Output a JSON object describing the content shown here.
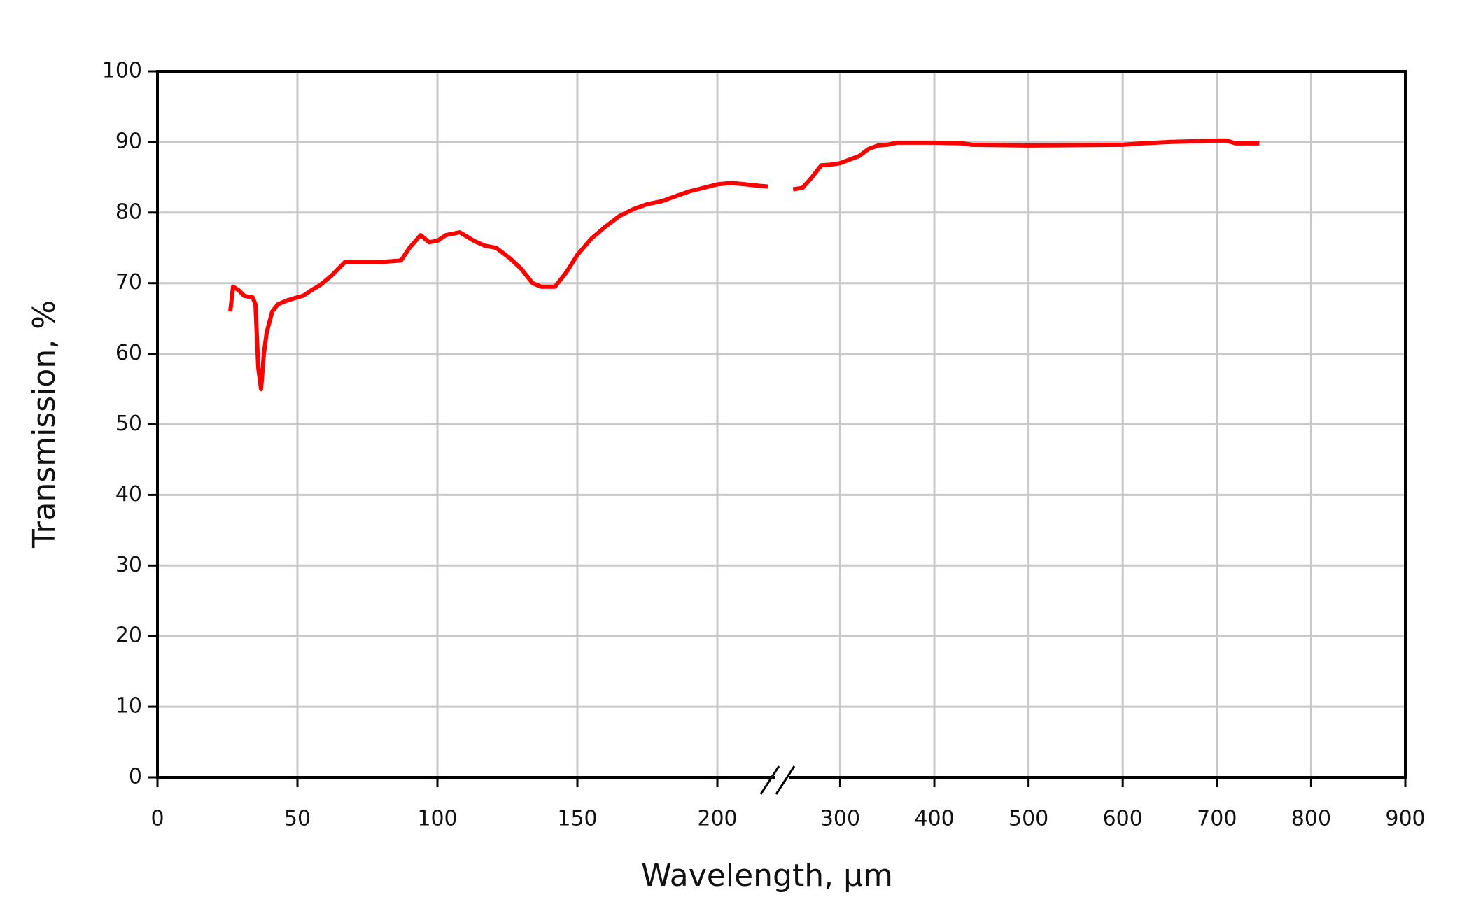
{
  "chart_data": {
    "type": "line",
    "x_label": "Wavelength, µm",
    "y_label": "Transmission, %",
    "color": "#ff0000",
    "grid": true,
    "ylim": [
      0,
      100
    ],
    "yticks": [
      0,
      10,
      20,
      30,
      40,
      50,
      60,
      70,
      80,
      90,
      100
    ],
    "segments": [
      {
        "xlim": [
          0,
          223
        ],
        "xticks": [
          0,
          50,
          100,
          150,
          200
        ],
        "x": [
          26,
          27,
          29,
          31,
          34,
          35,
          36,
          37,
          38,
          39,
          41,
          43,
          46,
          50,
          52,
          55,
          58,
          62,
          67,
          75,
          80,
          87,
          90,
          94,
          97,
          100,
          103,
          108,
          113,
          117,
          121,
          126,
          130,
          134,
          137,
          142,
          146,
          150,
          155,
          160,
          165,
          170,
          175,
          180,
          185,
          190,
          195,
          200,
          205,
          210,
          215,
          218
        ],
        "values": [
          66,
          69.5,
          69,
          68.2,
          68,
          67,
          58,
          55,
          60,
          63,
          66,
          67,
          67.5,
          68,
          68.2,
          69,
          69.7,
          71,
          73,
          73,
          73,
          73.2,
          75,
          76.8,
          75.8,
          76,
          76.8,
          77.2,
          76,
          75.3,
          75,
          73.5,
          72,
          70,
          69.5,
          69.5,
          71.5,
          74,
          76.3,
          78,
          79.5,
          80.5,
          81.2,
          81.6,
          82.3,
          83,
          83.5,
          84,
          84.2,
          84,
          83.8,
          83.7
        ]
      },
      {
        "xlim": [
          238,
          900
        ],
        "xticks": [
          300,
          400,
          500,
          600,
          700,
          800,
          900
        ],
        "x": [
          250,
          260,
          270,
          280,
          290,
          300,
          310,
          320,
          330,
          340,
          350,
          360,
          400,
          430,
          440,
          500,
          600,
          620,
          650,
          700,
          710,
          720,
          745
        ],
        "values": [
          83.3,
          83.5,
          85,
          86.7,
          86.8,
          87,
          87.5,
          88,
          89,
          89.5,
          89.6,
          89.9,
          89.9,
          89.8,
          89.6,
          89.5,
          89.6,
          89.8,
          90,
          90.2,
          90.2,
          89.8,
          89.8
        ]
      }
    ]
  }
}
